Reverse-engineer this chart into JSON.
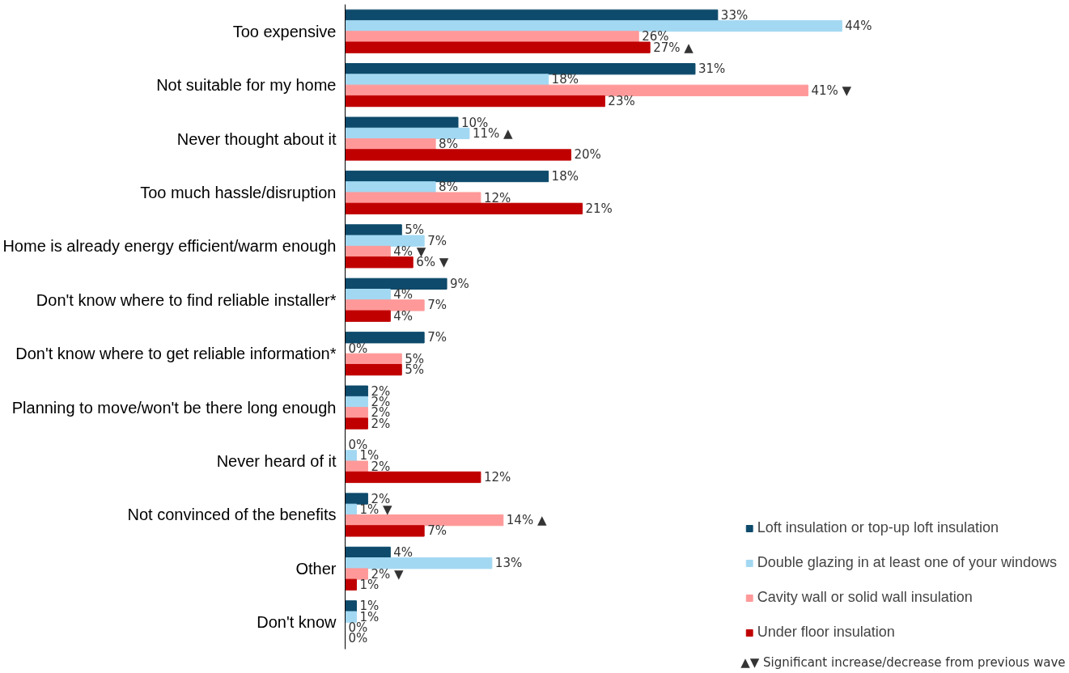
{
  "chart_data": {
    "type": "bar",
    "orientation": "horizontal",
    "categories": [
      "Too expensive",
      "Not suitable for my home",
      "Never thought about it",
      "Too much hassle/disruption",
      "Home is already energy efficient/warm enough",
      "Don't know where to find reliable installer*",
      "Don't know where to get reliable information*",
      "Planning to move/won't be there long enough",
      "Never heard of it",
      "Not convinced of the benefits",
      "Other",
      "Don't know"
    ],
    "series": [
      {
        "name": "Loft insulation or top-up loft insulation",
        "color": "#0d4a6b",
        "values": [
          33,
          31,
          10,
          18,
          5,
          9,
          7,
          2,
          0,
          2,
          4,
          1
        ],
        "value_labels": [
          "33%",
          "31%",
          "10%",
          "18%",
          "5%",
          "9%",
          "7%",
          "2%",
          "0%",
          "2%",
          "4%",
          "1%"
        ]
      },
      {
        "name": "Double glazing in at least one of your windows",
        "color": "#a3d8f2",
        "values": [
          44,
          18,
          11,
          8,
          7,
          4,
          0,
          2,
          1,
          1,
          13,
          1
        ],
        "value_labels": [
          "44%",
          "18%",
          "11% ▲",
          "8%",
          "7%",
          "4%",
          "0%",
          "2%",
          "1%",
          "1% ▼",
          "13%",
          "1%"
        ]
      },
      {
        "name": "Cavity wall or solid wall insulation",
        "color": "#ff9999",
        "values": [
          26,
          41,
          8,
          12,
          4,
          7,
          5,
          2,
          2,
          14,
          2,
          0
        ],
        "value_labels": [
          "26%",
          "41% ▼",
          "8%",
          "12%",
          "4% ▼",
          "7%",
          "5%",
          "2%",
          "2%",
          "14% ▲",
          "2% ▼",
          "0%"
        ]
      },
      {
        "name": "Under floor insulation",
        "color": "#c00000",
        "values": [
          27,
          23,
          20,
          21,
          6,
          4,
          5,
          2,
          12,
          7,
          1,
          0
        ],
        "value_labels": [
          "27% ▲",
          "23%",
          "20%",
          "21%",
          "6% ▼",
          "4%",
          "5%",
          "2%",
          "12%",
          "7%",
          "1%",
          "0%"
        ]
      }
    ],
    "legend": "bottom right",
    "grid": false,
    "annotations": [
      "▲▼ Significant increase/decrease from previous wave"
    ]
  }
}
